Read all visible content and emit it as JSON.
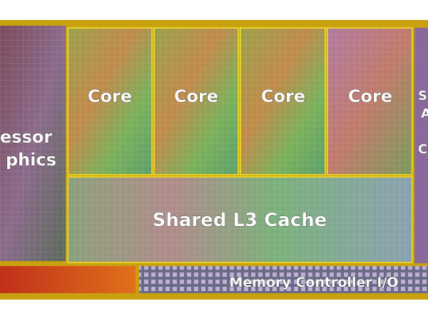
{
  "die": {
    "graphics_label": [
      "essor",
      "phics"
    ],
    "cores": [
      "Core",
      "Core",
      "Core",
      "Core"
    ],
    "cache_label": "Shared L3 Cache",
    "memory_label": "Memory Controller I/O",
    "agent_label": [
      "S",
      "A",
      "C"
    ]
  }
}
